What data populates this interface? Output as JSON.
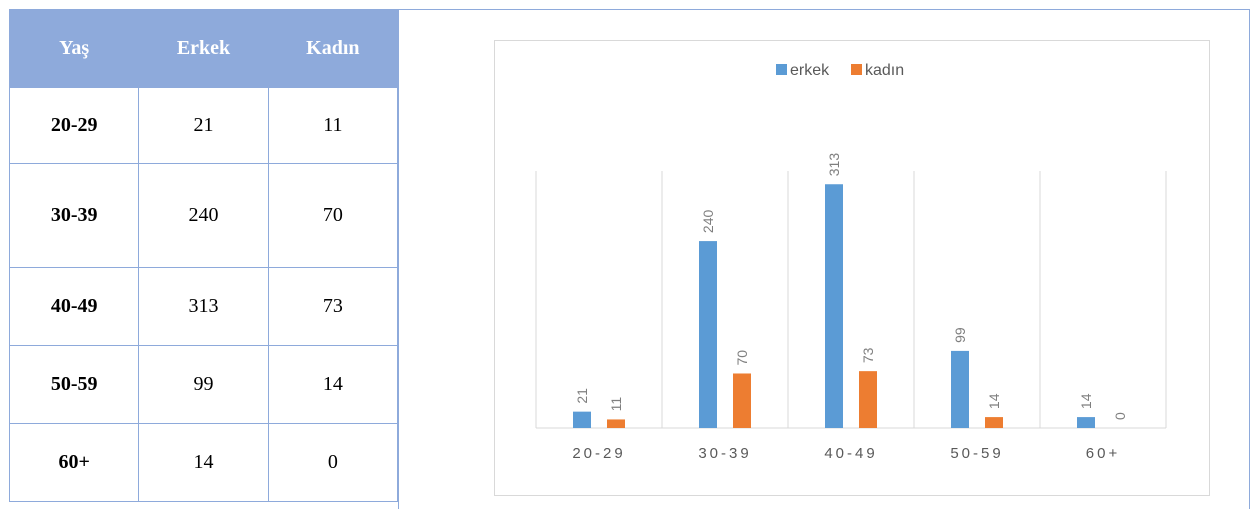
{
  "table": {
    "headers": [
      "Yaş",
      "Erkek",
      "Kadın"
    ],
    "rows": [
      {
        "age": "20-29",
        "erkek": "21",
        "kadin": "11"
      },
      {
        "age": "30-39",
        "erkek": "240",
        "kadin": "70"
      },
      {
        "age": "40-49",
        "erkek": "313",
        "kadin": "73"
      },
      {
        "age": "50-59",
        "erkek": "99",
        "kadin": "14"
      },
      {
        "age": "60+",
        "erkek": "14",
        "kadin": "0"
      }
    ]
  },
  "chart_data": {
    "type": "bar",
    "categories": [
      "20-29",
      "30-39",
      "40-49",
      "50-59",
      "60+"
    ],
    "series": [
      {
        "name": "erkek",
        "values": [
          21,
          240,
          313,
          99,
          14
        ],
        "color": "#5b9bd5"
      },
      {
        "name": "kadın",
        "values": [
          11,
          70,
          73,
          14,
          0
        ],
        "color": "#ed7d31"
      }
    ],
    "title": "",
    "xlabel": "",
    "ylabel": "",
    "legend_position": "top",
    "grid": "vertical",
    "data_labels": true
  }
}
